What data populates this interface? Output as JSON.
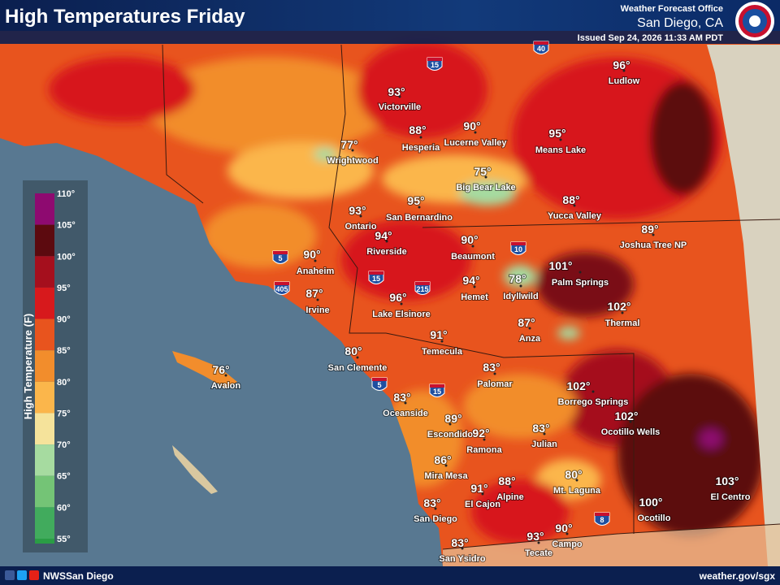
{
  "header": {
    "title": "High Temperatures Friday",
    "office_label": "Weather Forecast Office",
    "office_name": "San Diego, CA",
    "issued": "Issued Sep 24, 2026 11:33 AM PDT"
  },
  "legend": {
    "title": "High Temperature (F)",
    "labels": [
      "110°",
      "105°",
      "100°",
      "95°",
      "90°",
      "85°",
      "80°",
      "75°",
      "70°",
      "65°",
      "60°",
      "55°"
    ]
  },
  "cities": [
    {
      "name": "Ludlow",
      "temp": "96°"
    },
    {
      "name": "Victorville",
      "temp": "93°"
    },
    {
      "name": "Hesperia",
      "temp": "88°"
    },
    {
      "name": "Lucerne Valley",
      "temp": "90°"
    },
    {
      "name": "Means Lake",
      "temp": "95°"
    },
    {
      "name": "Wrightwood",
      "temp": "77°"
    },
    {
      "name": "Big Bear Lake",
      "temp": "75°"
    },
    {
      "name": "Yucca Valley",
      "temp": "88°"
    },
    {
      "name": "Ontario",
      "temp": "93°"
    },
    {
      "name": "San Bernardino",
      "temp": "95°"
    },
    {
      "name": "Joshua Tree NP",
      "temp": "89°"
    },
    {
      "name": "Riverside",
      "temp": "94°"
    },
    {
      "name": "Beaumont",
      "temp": "90°"
    },
    {
      "name": "Anaheim",
      "temp": "90°"
    },
    {
      "name": "Palm Springs",
      "temp": "101°"
    },
    {
      "name": "Hemet",
      "temp": "94°"
    },
    {
      "name": "Idyllwild",
      "temp": "78°"
    },
    {
      "name": "Irvine",
      "temp": "87°"
    },
    {
      "name": "Lake Elsinore",
      "temp": "96°"
    },
    {
      "name": "Thermal",
      "temp": "102°"
    },
    {
      "name": "Anza",
      "temp": "87°"
    },
    {
      "name": "Temecula",
      "temp": "91°"
    },
    {
      "name": "San Clemente",
      "temp": "80°"
    },
    {
      "name": "Avalon",
      "temp": "76°"
    },
    {
      "name": "Palomar",
      "temp": "83°"
    },
    {
      "name": "Borrego Springs",
      "temp": "102°"
    },
    {
      "name": "Oceanside",
      "temp": "83°"
    },
    {
      "name": "Escondido",
      "temp": "89°"
    },
    {
      "name": "Ramona",
      "temp": "92°"
    },
    {
      "name": "Julian",
      "temp": "83°"
    },
    {
      "name": "Ocotillo Wells",
      "temp": "102°"
    },
    {
      "name": "Mira Mesa",
      "temp": "86°"
    },
    {
      "name": "Mt. Laguna",
      "temp": "80°"
    },
    {
      "name": "Alpine",
      "temp": "88°"
    },
    {
      "name": "El Cajon",
      "temp": "91°"
    },
    {
      "name": "El Centro",
      "temp": "103°"
    },
    {
      "name": "Ocotillo",
      "temp": "100°"
    },
    {
      "name": "San Diego",
      "temp": "83°"
    },
    {
      "name": "Campo",
      "temp": "90°"
    },
    {
      "name": "Tecate",
      "temp": "93°"
    },
    {
      "name": "San Ysidro",
      "temp": "83°"
    }
  ],
  "highways": [
    "15",
    "40",
    "10",
    "5",
    "215",
    "15",
    "405",
    "5",
    "15",
    "8"
  ],
  "footer": {
    "social": "NWSSan Diego",
    "url": "weather.gov/sgx"
  }
}
